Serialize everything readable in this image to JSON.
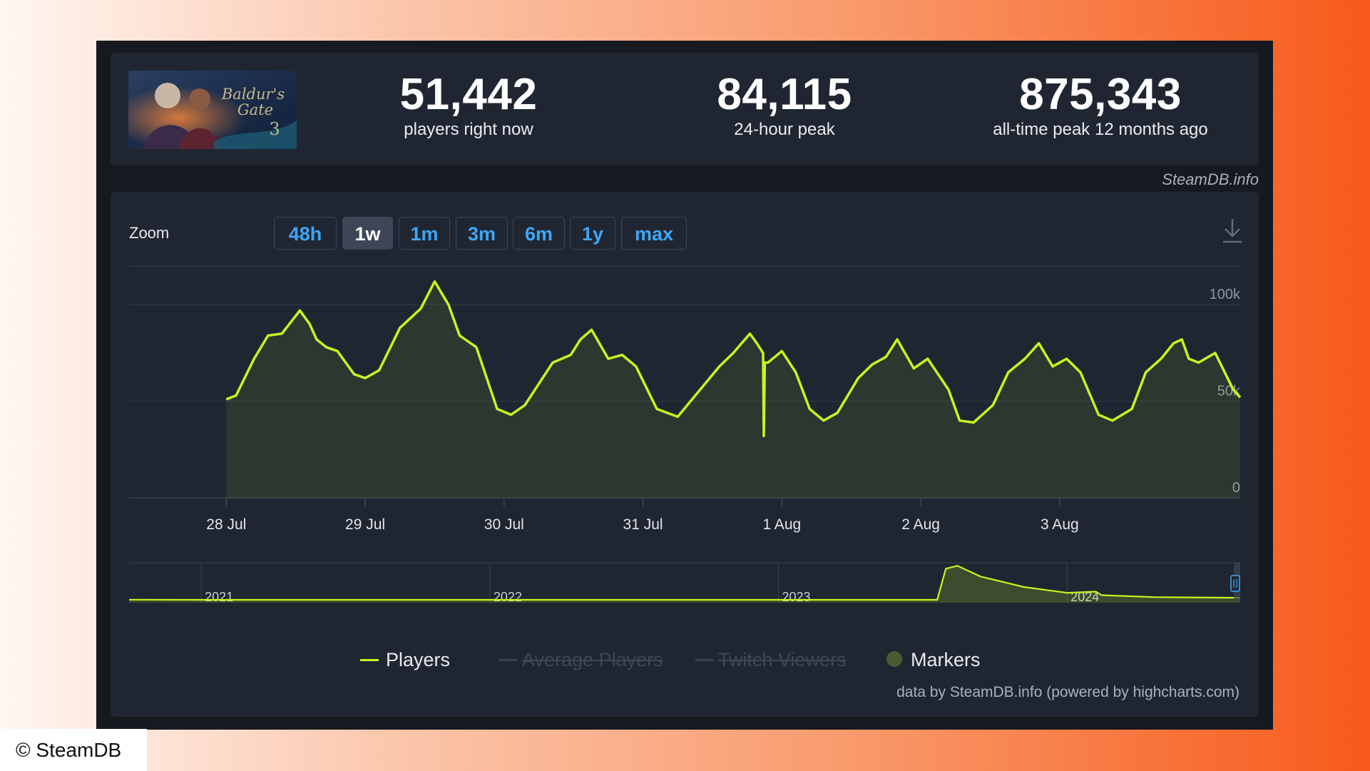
{
  "stats": {
    "current": {
      "value": "51,442",
      "label": "players right now"
    },
    "peak_24h": {
      "value": "84,115",
      "label": "24-hour peak"
    },
    "all_time": {
      "value": "875,343",
      "label": "all-time peak 12 months ago"
    }
  },
  "game_logo_text": "Baldur's Gate 3",
  "watermark": "SteamDB.info",
  "zoom": {
    "label": "Zoom",
    "buttons": [
      "48h",
      "1w",
      "1m",
      "3m",
      "6m",
      "1y",
      "max"
    ],
    "active": "1w"
  },
  "legend": {
    "players": "Players",
    "average": "Average Players",
    "twitch": "Twitch Viewers",
    "markers": "Markers"
  },
  "credits": "data by SteamDB.info (powered by highcharts.com)",
  "copyright": "© SteamDB",
  "colors": {
    "line": "#c6f51e",
    "link": "#3ea6f5",
    "panel": "#202631",
    "background": "#16191f"
  },
  "chart_data": [
    {
      "type": "line",
      "series": [
        {
          "name": "Players",
          "values": [
            [
              0,
              51000
            ],
            [
              0.07,
              53000
            ],
            [
              0.2,
              72000
            ],
            [
              0.3,
              84000
            ],
            [
              0.4,
              85000
            ],
            [
              0.53,
              97000
            ],
            [
              0.6,
              90000
            ],
            [
              0.65,
              82000
            ],
            [
              0.72,
              78000
            ],
            [
              0.8,
              76000
            ],
            [
              0.92,
              64000
            ],
            [
              1.0,
              62000
            ],
            [
              1.1,
              66000
            ],
            [
              1.25,
              88000
            ],
            [
              1.4,
              98000
            ],
            [
              1.5,
              112000
            ],
            [
              1.6,
              100000
            ],
            [
              1.68,
              84000
            ],
            [
              1.8,
              78000
            ],
            [
              1.95,
              46000
            ],
            [
              2.05,
              43000
            ],
            [
              2.15,
              48000
            ],
            [
              2.35,
              70000
            ],
            [
              2.48,
              74000
            ],
            [
              2.55,
              82000
            ],
            [
              2.63,
              87000
            ],
            [
              2.75,
              72000
            ],
            [
              2.85,
              74000
            ],
            [
              2.95,
              68000
            ],
            [
              3.1,
              46000
            ],
            [
              3.25,
              42000
            ],
            [
              3.4,
              55000
            ],
            [
              3.55,
              68000
            ],
            [
              3.65,
              75000
            ],
            [
              3.77,
              85000
            ],
            [
              3.82,
              80000
            ],
            [
              3.865,
              75000
            ],
            [
              3.87,
              32000
            ],
            [
              3.877,
              70000
            ],
            [
              3.9,
              70000
            ],
            [
              3.95,
              73000
            ],
            [
              4.0,
              76000
            ],
            [
              4.1,
              65000
            ],
            [
              4.2,
              46000
            ],
            [
              4.3,
              40000
            ],
            [
              4.4,
              44000
            ],
            [
              4.55,
              62000
            ],
            [
              4.65,
              69000
            ],
            [
              4.75,
              73000
            ],
            [
              4.83,
              82000
            ],
            [
              4.95,
              67000
            ],
            [
              5.05,
              72000
            ],
            [
              5.2,
              56000
            ],
            [
              5.28,
              40000
            ],
            [
              5.38,
              39000
            ],
            [
              5.52,
              48000
            ],
            [
              5.63,
              65000
            ],
            [
              5.75,
              72000
            ],
            [
              5.85,
              80000
            ],
            [
              5.95,
              68000
            ],
            [
              6.05,
              72000
            ],
            [
              6.15,
              65000
            ],
            [
              6.28,
              43000
            ],
            [
              6.38,
              40000
            ],
            [
              6.52,
              46000
            ],
            [
              6.62,
              65000
            ],
            [
              6.73,
              72000
            ],
            [
              6.82,
              80000
            ],
            [
              6.88,
              82000
            ],
            [
              6.93,
              72000
            ],
            [
              7.0,
              70000
            ],
            [
              7.12,
              75000
            ],
            [
              7.25,
              56000
            ],
            [
              7.3,
              52000
            ]
          ]
        }
      ],
      "x_tick_labels": [
        "28 Jul",
        "29 Jul",
        "30 Jul",
        "31 Jul",
        "1 Aug",
        "2 Aug",
        "3 Aug"
      ],
      "y_tick_labels": [
        "0",
        "50k",
        "100k"
      ],
      "ylim": [
        0,
        120000
      ],
      "grid": true
    },
    {
      "type": "area",
      "series": [
        {
          "name": "Players",
          "values": [
            [
              2020.75,
              3000
            ],
            [
              2021.0,
              500
            ],
            [
              2023.55,
              500
            ],
            [
              2023.58,
              800000
            ],
            [
              2023.62,
              875343
            ],
            [
              2023.7,
              600000
            ],
            [
              2023.85,
              330000
            ],
            [
              2024.0,
              180000
            ],
            [
              2024.1,
              210000
            ],
            [
              2024.12,
              120000
            ],
            [
              2024.3,
              70000
            ],
            [
              2024.55,
              55000
            ],
            [
              2024.6,
              51442
            ]
          ]
        }
      ],
      "x_tick_labels": [
        "2021",
        "2022",
        "2023",
        "2024"
      ]
    }
  ]
}
